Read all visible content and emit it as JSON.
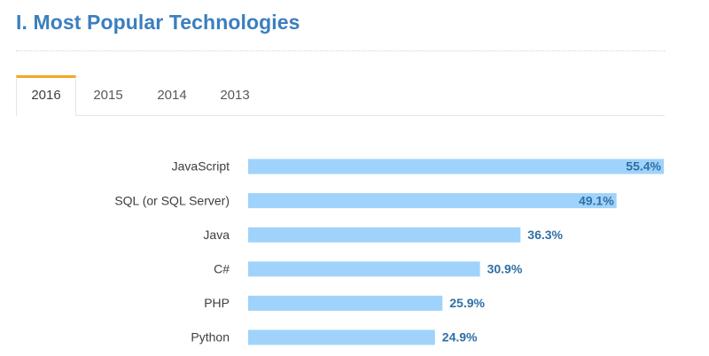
{
  "page": {
    "title": "I. Most Popular Technologies"
  },
  "tabs": [
    {
      "label": "2016",
      "active": true
    },
    {
      "label": "2015",
      "active": false
    },
    {
      "label": "2014",
      "active": false
    },
    {
      "label": "2013",
      "active": false
    }
  ],
  "colors": {
    "title": "#3a7fbe",
    "bar": "#9fd3fb",
    "value_label": "#2f6fa6",
    "category_label": "#3b3e42",
    "active_tab_accent": "#f5a623"
  },
  "chart_data": {
    "type": "bar",
    "orientation": "horizontal",
    "categories": [
      "JavaScript",
      "SQL (or SQL Server)",
      "Java",
      "C#",
      "PHP",
      "Python"
    ],
    "values": [
      55.4,
      49.1,
      36.3,
      30.9,
      25.9,
      24.9
    ],
    "value_labels": [
      "55.4%",
      "49.1%",
      "36.3%",
      "30.9%",
      "25.9%",
      "24.9%"
    ],
    "unit": "%",
    "xlim": [
      0,
      55.4
    ],
    "grid": false,
    "legend": "none"
  }
}
